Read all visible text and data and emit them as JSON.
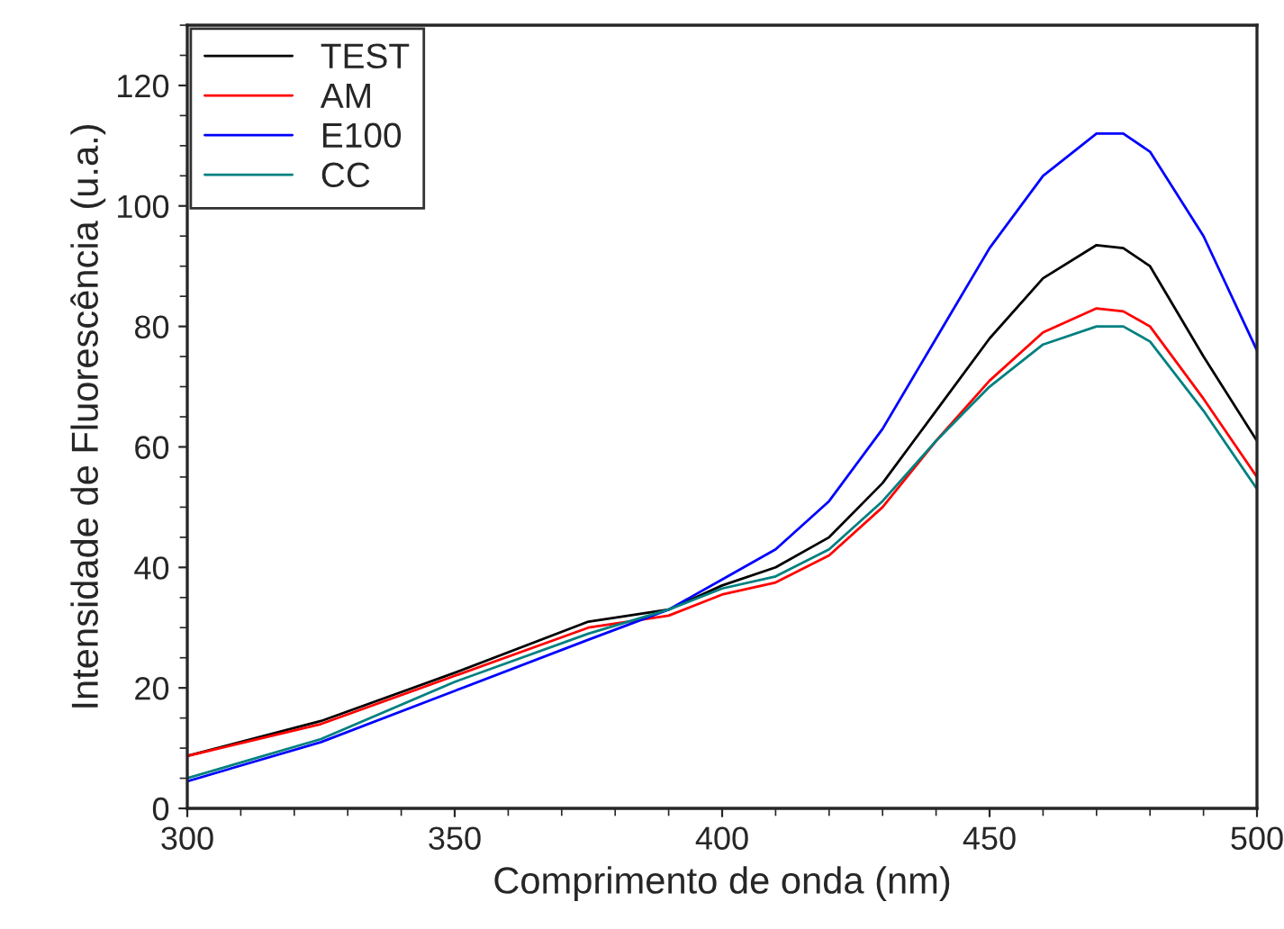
{
  "chart_data": {
    "type": "line",
    "xlabel": "Comprimento de onda (nm)",
    "ylabel": "Intensidade de Fluorescência (u.a.)",
    "x": [
      300,
      325,
      350,
      375,
      390,
      400,
      410,
      420,
      430,
      440,
      450,
      460,
      470,
      475,
      480,
      490,
      500
    ],
    "series": [
      {
        "name": "TEST",
        "color": "#000000",
        "values": [
          8.7,
          14.5,
          22.5,
          31,
          33,
          37,
          40,
          45,
          54,
          66,
          78,
          88,
          93.5,
          93,
          90,
          75,
          61
        ]
      },
      {
        "name": "AM",
        "color": "#ff0000",
        "values": [
          8.7,
          14,
          22,
          30,
          32,
          35.5,
          37.5,
          42,
          50,
          61,
          71,
          79,
          83,
          82.5,
          80,
          68,
          55
        ]
      },
      {
        "name": "E100",
        "color": "#0000ff",
        "values": [
          4.5,
          11,
          19.5,
          28,
          33,
          38,
          43,
          51,
          63,
          78,
          93,
          105,
          112,
          112,
          109,
          95,
          76
        ]
      },
      {
        "name": "CC",
        "color": "#008080",
        "values": [
          5,
          11.5,
          21,
          29,
          33,
          36.5,
          38.5,
          43,
          51,
          61,
          70,
          77,
          80,
          80,
          77.5,
          66,
          53
        ]
      }
    ],
    "xlim": [
      300,
      500
    ],
    "ylim": [
      0,
      130
    ],
    "xticks": [
      300,
      350,
      400,
      450,
      500
    ],
    "yticks": [
      0,
      20,
      40,
      60,
      80,
      100,
      120
    ],
    "grid": false,
    "legend": "top left",
    "marker": "none",
    "line_style": "solid"
  }
}
